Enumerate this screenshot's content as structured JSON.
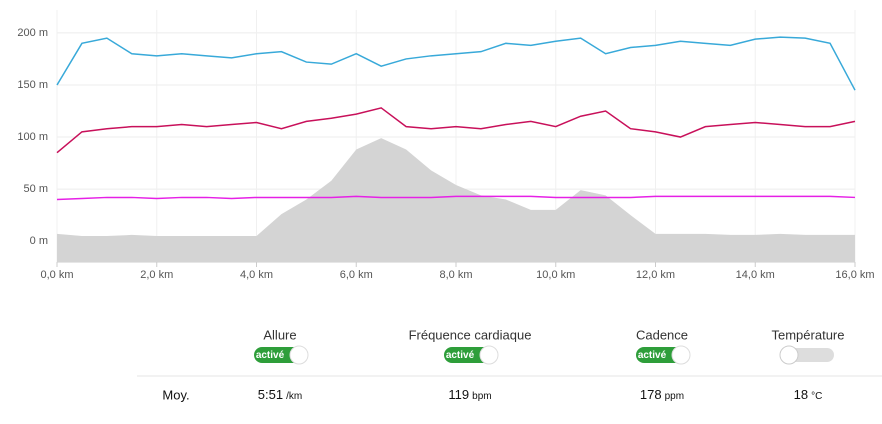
{
  "chart_data": {
    "type": "line",
    "x": [
      0,
      0.5,
      1,
      1.5,
      2,
      2.5,
      3,
      3.5,
      4,
      4.5,
      5,
      5.5,
      6,
      6.5,
      7,
      7.5,
      8,
      8.5,
      9,
      9.5,
      10,
      10.5,
      11,
      11.5,
      12,
      12.5,
      13,
      13.5,
      14,
      14.5,
      15,
      15.5,
      16
    ],
    "area": {
      "color": "#d4d4d4",
      "values": [
        7,
        5,
        5,
        6,
        5,
        5,
        5,
        5,
        5,
        26,
        40,
        58,
        88,
        99,
        88,
        68,
        54,
        44,
        40,
        30,
        30,
        49,
        44,
        25,
        7,
        7,
        7,
        6,
        6,
        7,
        6,
        6,
        6
      ]
    },
    "series": [
      {
        "name": "Cadence",
        "color": "#38a9d9",
        "values": [
          150,
          190,
          195,
          180,
          178,
          180,
          178,
          176,
          180,
          182,
          172,
          170,
          180,
          168,
          175,
          178,
          180,
          182,
          190,
          188,
          192,
          195,
          180,
          186,
          188,
          192,
          190,
          188,
          194,
          196,
          195,
          190,
          145
        ]
      },
      {
        "name": "Fréquence cardiaque",
        "color": "#c8105a",
        "values": [
          85,
          105,
          108,
          110,
          110,
          112,
          110,
          112,
          114,
          108,
          115,
          118,
          122,
          128,
          110,
          108,
          110,
          108,
          112,
          115,
          110,
          120,
          125,
          108,
          105,
          100,
          110,
          112,
          114,
          112,
          110,
          110,
          115
        ]
      },
      {
        "name": "Allure",
        "color": "#e620e6",
        "values": [
          40,
          41,
          42,
          42,
          41,
          42,
          42,
          41,
          42,
          42,
          42,
          42,
          43,
          42,
          42,
          42,
          43,
          43,
          43,
          43,
          42,
          42,
          42,
          42,
          43,
          43,
          43,
          43,
          43,
          43,
          43,
          43,
          42
        ]
      }
    ],
    "xlim": [
      0,
      16
    ],
    "ylim": [
      -20,
      222
    ],
    "xticks": [
      {
        "value": 0,
        "label": "0,0 km"
      },
      {
        "value": 2,
        "label": "2,0 km"
      },
      {
        "value": 4,
        "label": "4,0 km"
      },
      {
        "value": 6,
        "label": "6,0 km"
      },
      {
        "value": 8,
        "label": "8,0 km"
      },
      {
        "value": 10,
        "label": "10,0 km"
      },
      {
        "value": 12,
        "label": "12,0 km"
      },
      {
        "value": 14,
        "label": "14,0 km"
      },
      {
        "value": 16,
        "label": "16,0 km"
      }
    ],
    "yticks": [
      {
        "value": 0,
        "label": "0 m"
      },
      {
        "value": 50,
        "label": "50 m"
      },
      {
        "value": 100,
        "label": "100 m"
      },
      {
        "value": 150,
        "label": "150 m"
      },
      {
        "value": 200,
        "label": "200 m"
      }
    ],
    "grid": true
  },
  "toggles": [
    {
      "label": "Allure",
      "state": "activé",
      "active": true
    },
    {
      "label": "Fréquence cardiaque",
      "state": "activé",
      "active": true
    },
    {
      "label": "Cadence",
      "state": "activé",
      "active": true
    },
    {
      "label": "Température",
      "active": false
    }
  ],
  "summary": {
    "label": "Moy.",
    "cells": [
      {
        "value": "5:51",
        "unit": "/km"
      },
      {
        "value": "119",
        "unit": "bpm"
      },
      {
        "value": "178",
        "unit": "ppm"
      },
      {
        "value": "18",
        "unit": "°C"
      }
    ]
  }
}
